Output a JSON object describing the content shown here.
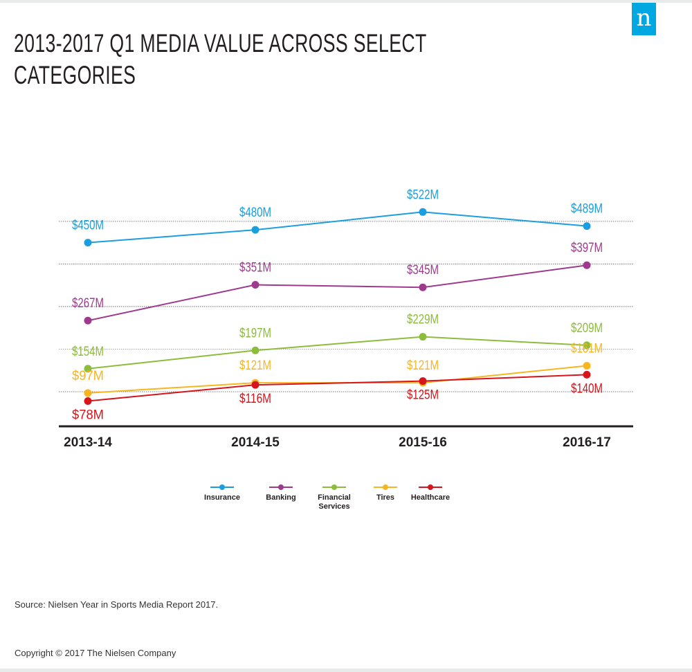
{
  "title": "2013-2017 Q1 MEDIA VALUE ACROSS SELECT CATEGORIES",
  "logo_letter": "n",
  "source": "Source: Nielsen Year in Sports Media Report 2017.",
  "copyright": "Copyright © 2017 The Nielsen Company",
  "colors": {
    "brand": "#00a7e1",
    "title": "#231f20",
    "grid": "#777777",
    "axis": "#231f20"
  },
  "chart_data": {
    "type": "line",
    "categories": [
      "2013-14",
      "2014-15",
      "2015-16",
      "2016-17"
    ],
    "ylim": [
      0,
      600
    ],
    "grid": true,
    "legend_position": "bottom-center",
    "series": [
      {
        "name": "Insurance",
        "color": "#1a9ee0",
        "values": [
          450,
          480,
          522,
          489
        ],
        "labels": [
          "$450M",
          "$480M",
          "$522M",
          "$489M"
        ],
        "label_side": [
          "above",
          "above",
          "above",
          "above"
        ]
      },
      {
        "name": "Banking",
        "color": "#9e3a8e",
        "values": [
          267,
          351,
          345,
          397
        ],
        "labels": [
          "$267M",
          "$351M",
          "$345M",
          "$397M"
        ],
        "label_side": [
          "above",
          "above",
          "above",
          "above"
        ]
      },
      {
        "name": "Financial Services",
        "color": "#8cbd3a",
        "values": [
          154,
          197,
          229,
          209
        ],
        "labels": [
          "$154M",
          "$197M",
          "$229M",
          "$209M"
        ],
        "label_side": [
          "above",
          "above",
          "above",
          "above"
        ]
      },
      {
        "name": "Tires",
        "color": "#f7b521",
        "values": [
          97,
          121,
          121,
          161
        ],
        "labels": [
          "$97M",
          "$121M",
          "$121M",
          "$161M"
        ],
        "label_side": [
          "above",
          "above",
          "above",
          "above"
        ]
      },
      {
        "name": "Healthcare",
        "color": "#d5141b",
        "values": [
          78,
          116,
          125,
          140
        ],
        "labels": [
          "$78M",
          "$116M",
          "$125M",
          "$140M"
        ],
        "label_side": [
          "below",
          "below",
          "below",
          "below"
        ]
      }
    ]
  },
  "legend": [
    {
      "label": "Insurance",
      "color": "#1a9ee0"
    },
    {
      "label": "Banking",
      "color": "#9e3a8e"
    },
    {
      "label": "Financial Services",
      "color": "#8cbd3a"
    },
    {
      "label": "Tires",
      "color": "#f7b521"
    },
    {
      "label": "Healthcare",
      "color": "#d5141b"
    }
  ]
}
